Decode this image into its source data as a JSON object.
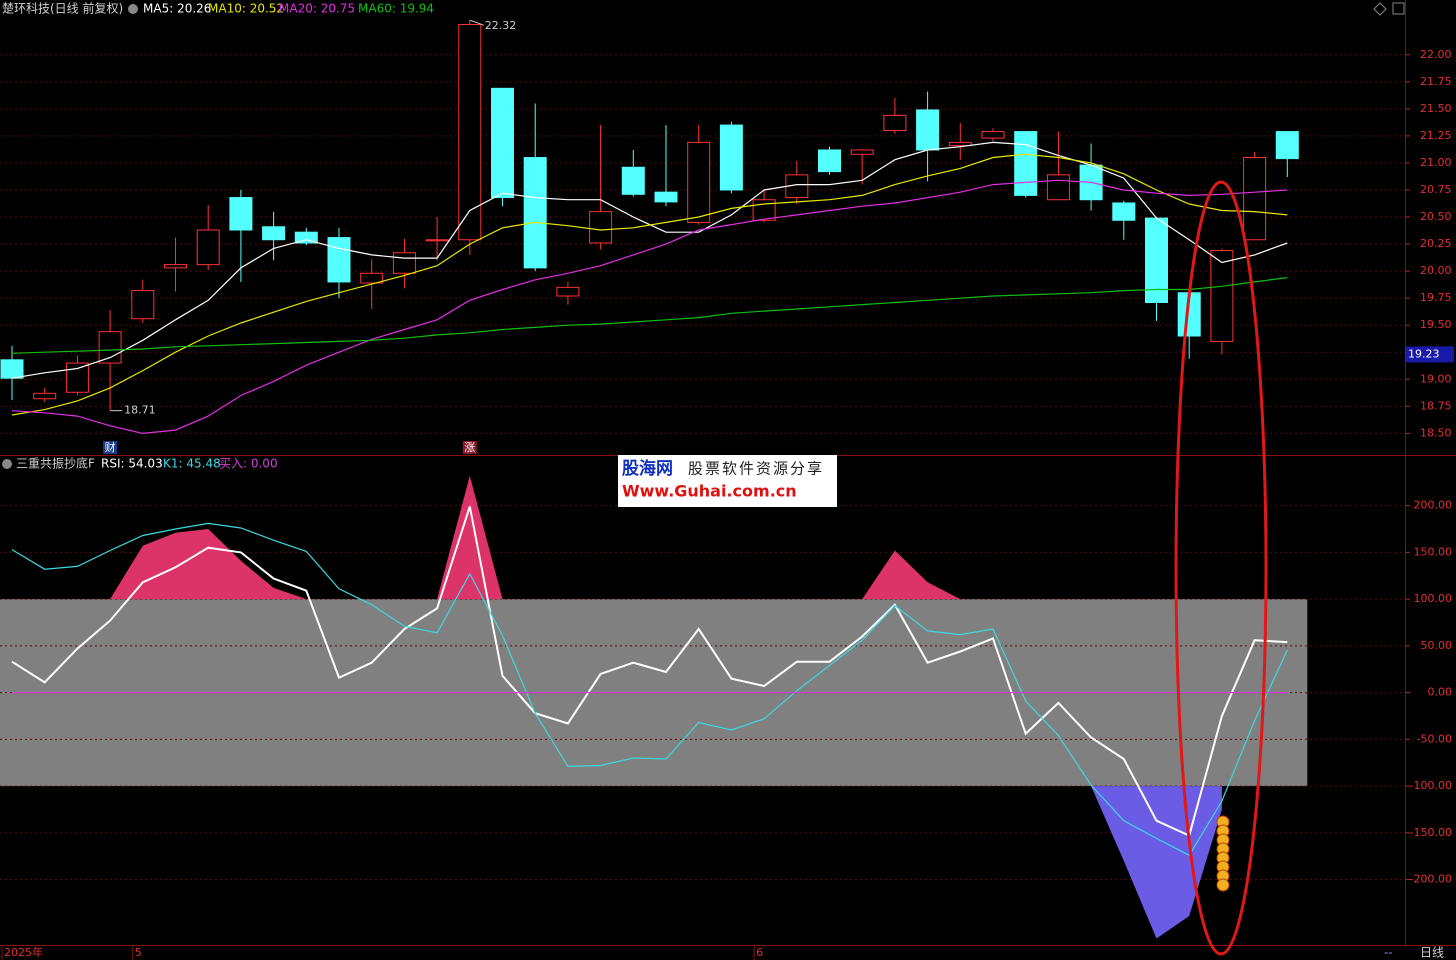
{
  "chart_data": [
    {
      "type": "candlestick",
      "title": "楚环科技(日线 前复权)",
      "categories": [
        "2025年",
        null,
        null,
        null,
        "5",
        null,
        null,
        null,
        null,
        null,
        null,
        null,
        null,
        null,
        null,
        null,
        null,
        null,
        null,
        null,
        null,
        null,
        null,
        "6",
        null,
        null,
        null,
        null,
        null,
        null,
        null,
        null,
        null,
        null,
        null,
        null,
        null,
        null,
        null,
        null
      ],
      "open": [
        19.18,
        18.82,
        18.88,
        19.15,
        19.56,
        20.03,
        20.06,
        20.68,
        20.41,
        20.36,
        20.31,
        19.89,
        19.98,
        20.28,
        20.29,
        21.69,
        21.05,
        19.77,
        20.26,
        20.96,
        20.73,
        20.45,
        21.35,
        20.47,
        20.68,
        21.12,
        21.08,
        21.3,
        21.49,
        21.16,
        21.23,
        21.29,
        20.66,
        20.98,
        20.63,
        20.49,
        19.8,
        19.35,
        20.29,
        21.29
      ],
      "high": [
        19.31,
        18.92,
        19.22,
        19.64,
        19.92,
        20.31,
        20.61,
        20.75,
        20.55,
        20.4,
        20.4,
        20.11,
        20.3,
        20.5,
        22.32,
        21.69,
        21.55,
        19.9,
        21.35,
        21.12,
        21.35,
        21.35,
        21.38,
        20.75,
        21.02,
        21.15,
        21.13,
        21.6,
        21.66,
        21.37,
        21.32,
        21.29,
        21.29,
        21.18,
        20.65,
        20.5,
        19.8,
        20.21,
        21.1,
        21.29
      ],
      "low": [
        18.81,
        18.79,
        18.85,
        18.71,
        19.52,
        19.81,
        20.01,
        19.9,
        20.1,
        20.24,
        19.75,
        19.65,
        19.84,
        20.1,
        20.15,
        20.6,
        20.0,
        19.69,
        20.2,
        20.69,
        20.6,
        20.43,
        20.72,
        20.45,
        20.62,
        20.89,
        20.8,
        21.27,
        20.83,
        21.03,
        21.2,
        20.68,
        20.66,
        20.56,
        20.29,
        19.54,
        19.19,
        19.23,
        20.29,
        20.87
      ],
      "close": [
        19.01,
        18.87,
        19.15,
        19.44,
        19.82,
        20.06,
        20.38,
        20.38,
        20.29,
        20.26,
        19.9,
        19.98,
        20.17,
        20.29,
        22.28,
        20.68,
        20.03,
        19.85,
        20.55,
        20.71,
        20.64,
        21.19,
        20.75,
        20.66,
        20.89,
        20.92,
        21.12,
        21.44,
        21.12,
        21.19,
        21.29,
        20.7,
        20.89,
        20.66,
        20.47,
        19.71,
        19.4,
        20.19,
        21.05,
        21.04
      ],
      "up_color": "#ff3232",
      "down_color": "#54ffff",
      "series": [
        {
          "name": "MA5: 20.26",
          "color": "#ffffff",
          "values": [
            19.01,
            19.06,
            19.1,
            19.2,
            19.36,
            19.55,
            19.73,
            20.03,
            20.21,
            20.29,
            20.21,
            20.15,
            20.12,
            20.12,
            20.56,
            20.72,
            20.68,
            20.66,
            20.66,
            20.5,
            20.36,
            20.36,
            20.52,
            20.75,
            20.8,
            20.8,
            20.84,
            21.03,
            21.12,
            21.15,
            21.19,
            21.17,
            21.07,
            20.98,
            20.86,
            20.49,
            20.29,
            20.08,
            20.15,
            20.26
          ]
        },
        {
          "name": "MA10: 20.52",
          "color": "#e8e800",
          "values": [
            18.67,
            18.72,
            18.8,
            18.92,
            19.08,
            19.25,
            19.4,
            19.52,
            19.62,
            19.72,
            19.8,
            19.88,
            19.96,
            20.05,
            20.25,
            20.4,
            20.45,
            20.42,
            20.38,
            20.4,
            20.45,
            20.5,
            20.58,
            20.62,
            20.64,
            20.66,
            20.7,
            20.8,
            20.88,
            20.95,
            21.05,
            21.08,
            21.05,
            21.0,
            20.9,
            20.75,
            20.62,
            20.56,
            20.55,
            20.52
          ]
        },
        {
          "name": "MA20: 20.75",
          "color": "#e030e0",
          "values": [
            18.71,
            18.69,
            18.66,
            18.57,
            18.5,
            18.53,
            18.66,
            18.85,
            18.98,
            19.13,
            19.25,
            19.37,
            19.46,
            19.55,
            19.73,
            19.83,
            19.92,
            19.98,
            20.05,
            20.15,
            20.25,
            20.38,
            20.43,
            20.48,
            20.52,
            20.56,
            20.6,
            20.63,
            20.68,
            20.73,
            20.8,
            20.82,
            20.84,
            20.82,
            20.75,
            20.72,
            20.7,
            20.71,
            20.73,
            20.75
          ]
        },
        {
          "name": "MA60: 19.94",
          "color": "#10c010",
          "values": [
            19.24,
            19.25,
            19.26,
            19.27,
            19.28,
            19.3,
            19.31,
            19.32,
            19.33,
            19.34,
            19.35,
            19.36,
            19.38,
            19.41,
            19.43,
            19.46,
            19.48,
            19.5,
            19.51,
            19.53,
            19.55,
            19.57,
            19.61,
            19.63,
            19.65,
            19.67,
            19.69,
            19.71,
            19.73,
            19.75,
            19.77,
            19.78,
            19.79,
            19.8,
            19.82,
            19.83,
            19.83,
            19.86,
            19.9,
            19.94
          ]
        }
      ],
      "ylim": [
        18.3,
        22.34
      ],
      "yticks": [
        {
          "value": 18.5,
          "label": "18.50"
        },
        {
          "value": 18.75,
          "label": "18.75"
        },
        {
          "value": 19,
          "label": "19.00"
        },
        {
          "value": 19.25,
          "label": "19.25"
        },
        {
          "value": 19.5,
          "label": "19.50"
        },
        {
          "value": 19.75,
          "label": "19.75"
        },
        {
          "value": 20,
          "label": "20.00"
        },
        {
          "value": 20.25,
          "label": "20.25"
        },
        {
          "value": 20.5,
          "label": "20.50"
        },
        {
          "value": 20.75,
          "label": "20.75"
        },
        {
          "value": 21,
          "label": "21.00"
        },
        {
          "value": 21.25,
          "label": "21.25"
        },
        {
          "value": 21.5,
          "label": "21.50"
        },
        {
          "value": 21.75,
          "label": "21.75"
        },
        {
          "value": 22,
          "label": "22.00"
        }
      ],
      "grid": true,
      "annotations": [
        "财",
        "涨"
      ],
      "price_tag": 19.23
    },
    {
      "type": "line",
      "title": "三重共振抄底F",
      "series": [
        {
          "name": "RSI: 54.03",
          "color": "#ffffff",
          "values": [
            33,
            11,
            47,
            77,
            118,
            134,
            155,
            150,
            122,
            109,
            16,
            32,
            68,
            90,
            199,
            18,
            -22,
            -33,
            20,
            32,
            22,
            68,
            15,
            7,
            33,
            33,
            60,
            94,
            32,
            44,
            58,
            -44,
            -11,
            -48,
            -71,
            -137,
            -153,
            -25,
            56,
            54.03
          ]
        },
        {
          "name": "K1: 45.48",
          "color": "#3fd7e0",
          "values": [
            153,
            132,
            135,
            152,
            168,
            175,
            181,
            176,
            163,
            151,
            111,
            94,
            71,
            64,
            127,
            61,
            -22,
            -79,
            -78,
            -70,
            -71,
            -32,
            -40,
            -28,
            2,
            29,
            56,
            93,
            66,
            62,
            68,
            -9,
            -46,
            -99,
            -137,
            -156,
            -174,
            -116,
            -30,
            45.48
          ]
        },
        {
          "name": "买入: 0.00",
          "color": "#d040d0",
          "values": [
            0,
            0,
            0,
            0,
            0,
            0,
            0,
            0,
            0,
            0,
            0,
            0,
            0,
            0,
            0,
            0,
            0,
            0,
            0,
            0,
            0,
            0,
            0,
            0,
            0,
            0,
            0,
            0,
            0,
            0,
            0,
            0,
            0,
            0,
            0,
            0,
            0,
            0,
            0,
            0
          ]
        },
        {
          "style": "area",
          "color": "#dc3468",
          "values": [
            null,
            null,
            null,
            100,
            157,
            171,
            175,
            141,
            112,
            100,
            null,
            null,
            null,
            100,
            232,
            100,
            null,
            null,
            null,
            null,
            null,
            null,
            null,
            null,
            null,
            null,
            100,
            152,
            118,
            100,
            null,
            null,
            null,
            null,
            null,
            null,
            null,
            null,
            null,
            null
          ]
        },
        {
          "style": "area",
          "color": "#6b5ce6",
          "values": [
            null,
            null,
            null,
            null,
            null,
            null,
            null,
            null,
            null,
            null,
            null,
            null,
            null,
            null,
            null,
            null,
            null,
            null,
            null,
            null,
            null,
            null,
            null,
            null,
            null,
            null,
            null,
            null,
            null,
            null,
            null,
            null,
            null,
            -100,
            -180,
            -263,
            -239,
            -125,
            null,
            null
          ]
        }
      ],
      "ylim": [
        -270,
        252
      ],
      "yticks": [
        {
          "value": 200,
          "label": "200.00"
        },
        {
          "value": 150,
          "label": "150.00"
        },
        {
          "value": 100,
          "label": "100.00"
        },
        {
          "value": 50,
          "label": "50.00"
        },
        {
          "value": 0,
          "label": "0.00"
        },
        {
          "value": -50,
          "label": "-50.00"
        },
        {
          "value": -100,
          "label": "-100.00"
        },
        {
          "value": -150,
          "label": "-150.00"
        },
        {
          "value": -200,
          "label": "-200.00"
        }
      ],
      "grid": true,
      "shaded_range": [
        -100,
        100
      ]
    }
  ],
  "watermark": {
    "logo": "股海网",
    "slogan": "股票软件资源分享",
    "url": "Www.Guhai.com.cn"
  },
  "footer": {
    "period": "日线",
    "status": "--"
  }
}
